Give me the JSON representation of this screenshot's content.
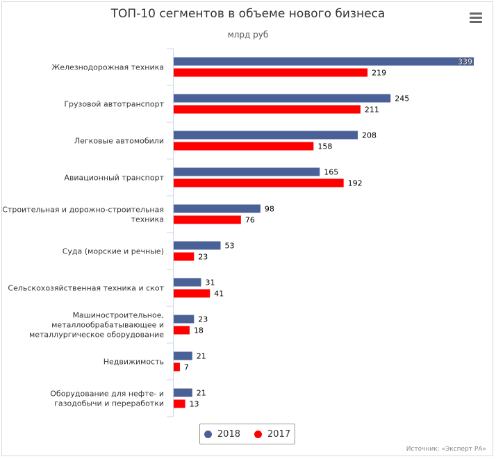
{
  "chart_data": {
    "type": "bar",
    "orientation": "horizontal",
    "title": "ТОП-10 сегментов в объеме нового бизнеса",
    "subtitle": "млрд руб",
    "categories": [
      "Железнодорожная техника",
      "Грузовой автотранспорт",
      "Легковые автомобили",
      "Авиационный транспорт",
      "Строительная и дорожно-строительная техника",
      "Суда (морские и речные)",
      "Сельскохозяйственная техника и скот",
      "Машиностроительное, металлообрабатывающее и металлургическое оборудование",
      "Недвижимость",
      "Оборудование для нефте- и газодобычи и переработки"
    ],
    "category_lines": [
      [
        "Железнодорожная техника"
      ],
      [
        "Грузовой автотранспорт"
      ],
      [
        "Легковые автомобили"
      ],
      [
        "Авиационный транспорт"
      ],
      [
        "Строительная и дорожно-строительная",
        "техника"
      ],
      [
        "Суда (морские и речные)"
      ],
      [
        "Сельскохозяйственная техника и скот"
      ],
      [
        "Машиностроительное,",
        "металлообрабатывающее и",
        "металлургическое оборудование"
      ],
      [
        "Недвижимость"
      ],
      [
        "Оборудование для нефте- и",
        "газодобычи и переработки"
      ]
    ],
    "series": [
      {
        "name": "2018",
        "color": "#4a6198",
        "values": [
          339,
          245,
          208,
          165,
          98,
          53,
          31,
          23,
          21,
          21
        ]
      },
      {
        "name": "2017",
        "color": "#ff0000",
        "values": [
          219,
          211,
          158,
          192,
          76,
          23,
          41,
          18,
          7,
          13
        ]
      }
    ],
    "xlim": [
      0,
      339
    ],
    "legend_position": "bottom-center",
    "grid": false
  },
  "credit": "Источник: «Эксперт РА»",
  "icons": {
    "menu": "hamburger-menu-icon"
  }
}
